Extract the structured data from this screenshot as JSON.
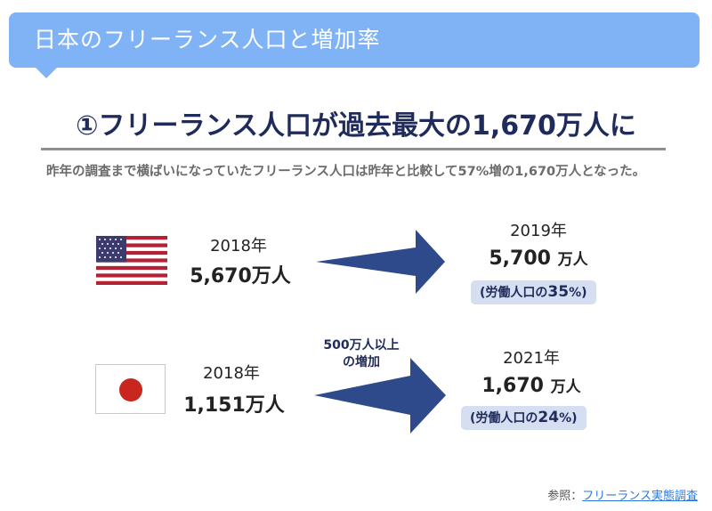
{
  "header": {
    "title": "日本のフリーランス人口と増加率"
  },
  "headline": "①フリーランス人口が過去最大の1,670万人に",
  "description": "昨年の調査まで横ばいになっていたフリーランス人口は昨年と比較して57%増の1,670万人となった。",
  "us": {
    "before_year": "2018年",
    "before_value": "5,670",
    "before_unit": "万人",
    "after_year": "2019年",
    "after_value": "5,700",
    "after_unit": "万人",
    "labor_prefix": "(労働人口の",
    "labor_pct": "35",
    "labor_suffix": "%)"
  },
  "jp": {
    "before_year": "2018年",
    "before_value": "1,151",
    "before_unit": "万人",
    "after_year": "2021年",
    "after_value": "1,670",
    "after_unit": "万人",
    "labor_prefix": "(労働人口の",
    "labor_pct": "24",
    "labor_suffix": "%)",
    "increase_note_line1": "500万人以上",
    "increase_note_line2": "の増加"
  },
  "reference": {
    "label": "参照：",
    "link_text": "フリーランス実態調査"
  },
  "colors": {
    "header_bg": "#7fb3f5",
    "arrow": "#2e4a8a",
    "pill_bg": "#d5dff1",
    "link": "#2a7ae2"
  },
  "icons": {
    "us_flag": "us-flag-icon",
    "jp_flag": "japan-flag-icon",
    "arrow": "right-arrow-icon"
  }
}
